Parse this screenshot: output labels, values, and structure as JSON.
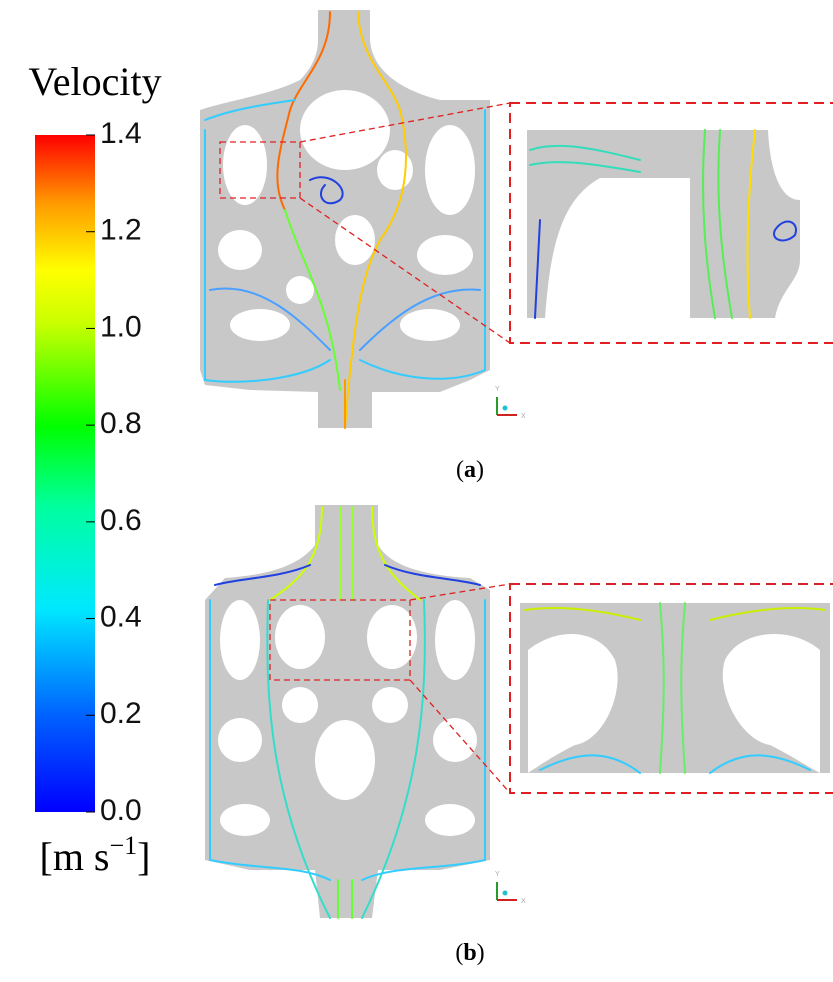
{
  "colorbar": {
    "title": "Velocity",
    "clim": [
      0,
      1.4
    ],
    "ticks": [
      {
        "value": 0,
        "label": "0.0"
      },
      0.2,
      0.4,
      0.6,
      0.8,
      {
        "value": 1,
        "label": "1.0"
      },
      1.2,
      1.4
    ],
    "unit": {
      "base": "[m s",
      "sup": "−1",
      "close": "]"
    }
  },
  "panels": [
    {
      "label": [
        "(",
        "a",
        ")"
      ],
      "axes": {
        "y": "Y",
        "x": "X"
      }
    },
    {
      "label": [
        "(",
        "b",
        ")"
      ],
      "axes": {
        "y": "Y",
        "x": "X"
      }
    }
  ]
}
